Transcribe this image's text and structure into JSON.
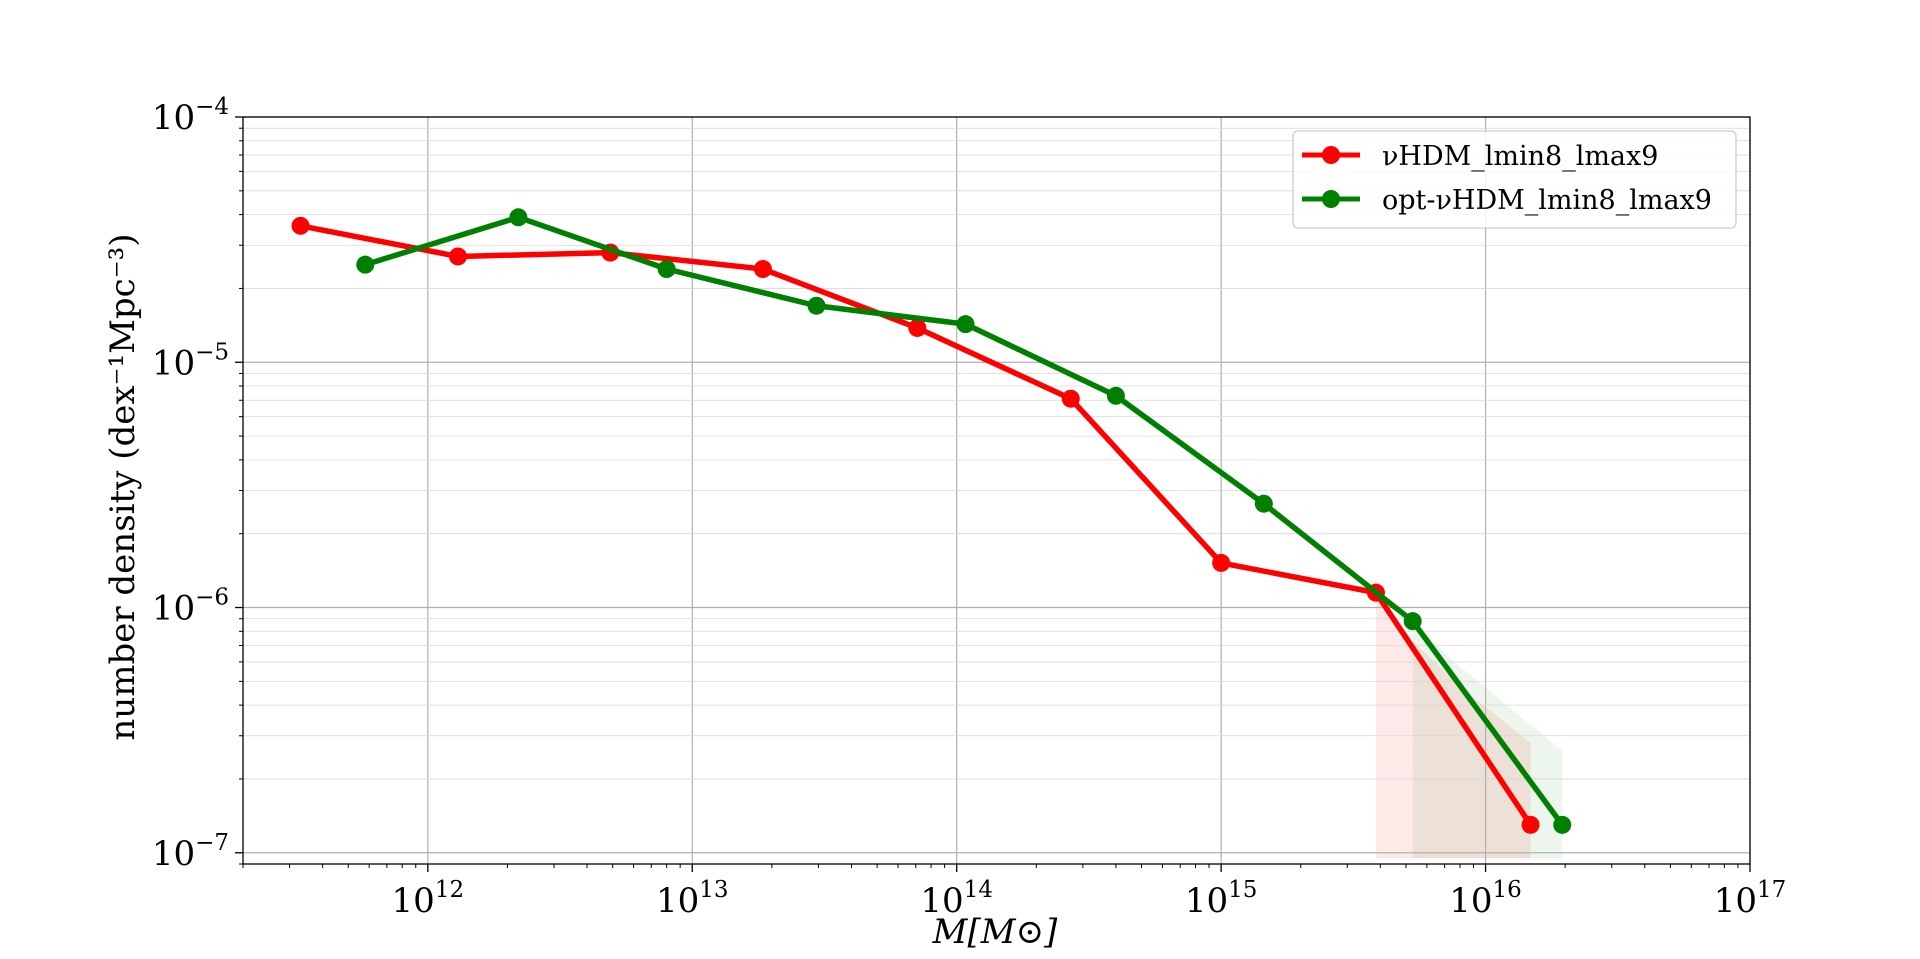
{
  "chart_data": {
    "type": "line",
    "title": "",
    "xlabel": "M[M⊙]",
    "ylabel": "number density (dex⁻¹Mpc⁻³)",
    "xscale": "log",
    "yscale": "log",
    "xlim": [
      200000000000.0,
      1e+17
    ],
    "ylim": [
      9e-08,
      0.0001
    ],
    "grid": true,
    "legend_position": "top-right",
    "x_ticks": [
      {
        "base": "10",
        "exp": "12",
        "value": 1000000000000.0
      },
      {
        "base": "10",
        "exp": "13",
        "value": 10000000000000.0
      },
      {
        "base": "10",
        "exp": "14",
        "value": 100000000000000.0
      },
      {
        "base": "10",
        "exp": "15",
        "value": 1000000000000000.0
      },
      {
        "base": "10",
        "exp": "16",
        "value": 1e+16
      },
      {
        "base": "10",
        "exp": "17",
        "value": 1e+17
      }
    ],
    "y_ticks": [
      {
        "base": "10",
        "exp": "−4",
        "value": 0.0001
      },
      {
        "base": "10",
        "exp": "−5",
        "value": 1e-05
      },
      {
        "base": "10",
        "exp": "−6",
        "value": 1e-06
      },
      {
        "base": "10",
        "exp": "−7",
        "value": 1e-07
      }
    ],
    "series": [
      {
        "name": "νHDM_lmin8_lmax9",
        "color": "#ff0000",
        "x": [
          330000000000.0,
          1300000000000.0,
          4900000000000.0,
          18500000000000.0,
          71000000000000.0,
          270000000000000.0,
          1000000000000000.0,
          3850000000000000.0,
          1.48e+16
        ],
        "y": [
          3.6e-05,
          2.7e-05,
          2.8e-05,
          2.4e-05,
          1.38e-05,
          7.1e-06,
          1.52e-06,
          1.15e-06,
          1.3e-07
        ],
        "band": {
          "x": [
            3850000000000000.0,
            5500000000000000.0,
            8600000000000000.0,
            1.48e+16
          ],
          "lower": [
            9.5e-08,
            9.5e-08,
            9.5e-08,
            9.5e-08
          ],
          "upper": [
            1.15e-06,
            7e-07,
            4.5e-07,
            2.8e-07
          ]
        }
      },
      {
        "name": "opt-νHDM_lmin8_lmax9",
        "color": "#008000",
        "x": [
          580000000000.0,
          2200000000000.0,
          8000000000000.0,
          29500000000000.0,
          108000000000000.0,
          400000000000000.0,
          1450000000000000.0,
          5300000000000000.0,
          1.95e+16
        ],
        "y": [
          2.5e-05,
          3.9e-05,
          2.4e-05,
          1.7e-05,
          1.43e-05,
          7.3e-06,
          2.65e-06,
          8.8e-07,
          1.3e-07
        ],
        "band": {
          "x": [
            5300000000000000.0,
            7600000000000000.0,
            1.2e+16,
            1.95e+16
          ],
          "lower": [
            9.5e-08,
            9.5e-08,
            9.5e-08,
            9.5e-08
          ],
          "upper": [
            8.8e-07,
            6e-07,
            4e-07,
            2.6e-07
          ]
        }
      }
    ]
  }
}
